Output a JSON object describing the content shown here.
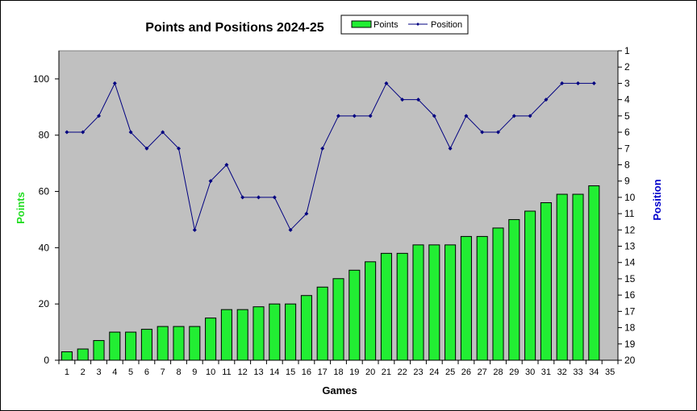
{
  "chart_data": {
    "type": "bar+line",
    "title": "Points and Positions 2024-25",
    "xlabel": "Games",
    "ylabel_left": "Points",
    "ylabel_right": "Position",
    "y_left_lim": [
      0,
      110
    ],
    "y_left_ticks": [
      "0",
      "20",
      "40",
      "60",
      "80",
      "100"
    ],
    "y_right_lim": [
      1,
      20
    ],
    "y_right_ticks": [
      "1",
      "2",
      "3",
      "4",
      "5",
      "6",
      "7",
      "8",
      "9",
      "10",
      "11",
      "12",
      "13",
      "14",
      "15",
      "16",
      "17",
      "18",
      "19",
      "20"
    ],
    "y_right_inverted": true,
    "x_ticks": [
      "1",
      "2",
      "3",
      "4",
      "5",
      "6",
      "7",
      "8",
      "9",
      "10",
      "11",
      "12",
      "13",
      "14",
      "15",
      "16",
      "17",
      "18",
      "19",
      "20",
      "21",
      "22",
      "23",
      "24",
      "25",
      "26",
      "27",
      "28",
      "29",
      "30",
      "31",
      "32",
      "33",
      "34",
      "35"
    ],
    "grid": false,
    "legend_placement": "top-right",
    "series": [
      {
        "name": "Points",
        "kind": "bar",
        "color": "#22ee33",
        "values": [
          3,
          4,
          7,
          10,
          10,
          11,
          12,
          12,
          12,
          15,
          18,
          18,
          19,
          20,
          20,
          23,
          26,
          29,
          32,
          35,
          38,
          38,
          41,
          41,
          41,
          44,
          44,
          47,
          50,
          53,
          56,
          59,
          59,
          62
        ]
      },
      {
        "name": "Position",
        "kind": "line",
        "color": "#000080",
        "values": [
          6,
          6,
          5,
          3,
          6,
          7,
          6,
          7,
          12,
          9,
          8,
          10,
          10,
          10,
          12,
          11,
          7,
          5,
          5,
          5,
          3,
          4,
          4,
          5,
          7,
          5,
          6,
          6,
          5,
          5,
          4,
          3,
          3,
          3
        ]
      }
    ],
    "colors": {
      "plot_background": "#c0c0c0",
      "left_axis_label": "#22dd22",
      "right_axis_label": "#0000cc"
    }
  }
}
